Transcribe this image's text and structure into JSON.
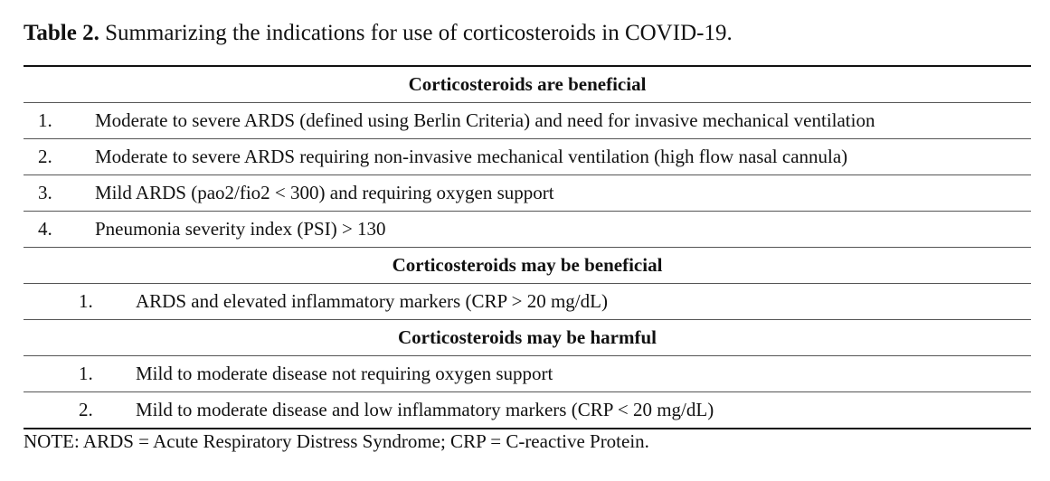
{
  "caption": {
    "label": "Table 2.",
    "text": "Summarizing the indications for use of corticosteroids in COVID-19."
  },
  "sections": [
    {
      "heading": "Corticosteroids are beneficial",
      "items": [
        {
          "num": "1.",
          "text": "Moderate to severe ARDS (defined using Berlin Criteria) and need for invasive mechanical ventilation"
        },
        {
          "num": "2.",
          "text": "Moderate to severe ARDS requiring non-invasive mechanical ventilation (high flow nasal cannula)"
        },
        {
          "num": "3.",
          "text": "Mild ARDS (pao2/fio2 < 300) and requiring oxygen support"
        },
        {
          "num": "4.",
          "text": "Pneumonia severity index (PSI) > 130"
        }
      ]
    },
    {
      "heading": "Corticosteroids may be beneficial",
      "items": [
        {
          "num": "1.",
          "text": "ARDS and elevated inflammatory markers (CRP > 20 mg/dL)"
        }
      ]
    },
    {
      "heading": "Corticosteroids may be harmful",
      "items": [
        {
          "num": "1.",
          "text": "Mild to moderate disease not requiring oxygen support"
        },
        {
          "num": "2.",
          "text": "Mild to moderate disease and low inflammatory markers (CRP < 20 mg/dL)"
        }
      ]
    }
  ],
  "note": "NOTE: ARDS = Acute Respiratory Distress Syndrome; CRP = C-reactive Protein."
}
